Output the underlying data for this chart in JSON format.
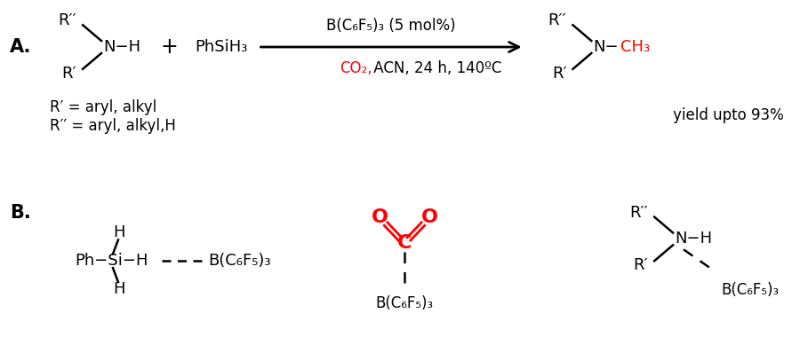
{
  "bg_color": "#ffffff",
  "black": "#000000",
  "red": "#ff0000",
  "figsize": [
    9.09,
    3.8
  ],
  "dpi": 100,
  "panel_A_label": "A.",
  "panel_B_label": "B.",
  "footnote1": "R′ = aryl, alkyl",
  "footnote2": "R′′ = aryl, alkyl,H",
  "yield_text": "yield upto 93%",
  "catalyst_text": "B(C₆F₅)₃ (5 mol%)",
  "conditions_red": "CO₂,",
  "conditions_black": " ACN, 24 h, 140ºC",
  "B_CO2_bottom": "B(C₆F₅)₃"
}
